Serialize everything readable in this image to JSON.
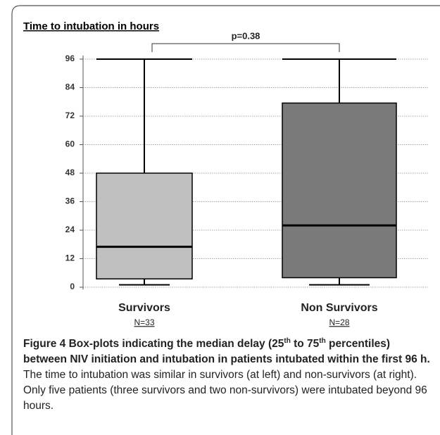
{
  "chart_data": {
    "type": "box",
    "title": "Time to intubation in hours",
    "categories": [
      "Survivors",
      "Non Survivors"
    ],
    "n_labels": [
      "N=33",
      "N=28"
    ],
    "colors": [
      "#c0c0c0",
      "#7a7a7a"
    ],
    "whislo": [
      1,
      1
    ],
    "q1": [
      3.5,
      4
    ],
    "median": [
      17,
      26
    ],
    "q3": [
      48,
      77.5
    ],
    "whishi": [
      96,
      96
    ],
    "ylim": [
      -1,
      97.5
    ],
    "yticks": [
      0,
      12,
      24,
      36,
      48,
      60,
      72,
      84,
      96
    ],
    "grid": true,
    "annotation": "p=0.38"
  },
  "caption": {
    "label": "Figure 4",
    "title": [
      "Box-plots indicating the median delay (25",
      "th",
      " to 75",
      "th",
      " percentiles) between NIV initiation and intubation in patients intubated within the first 96 h."
    ],
    "text": "The time to intubation was similar in survivors (at left) and non-survivors (at right). Only five patients (three survivors and two non-survivors) were intubated beyond 96 hours."
  }
}
